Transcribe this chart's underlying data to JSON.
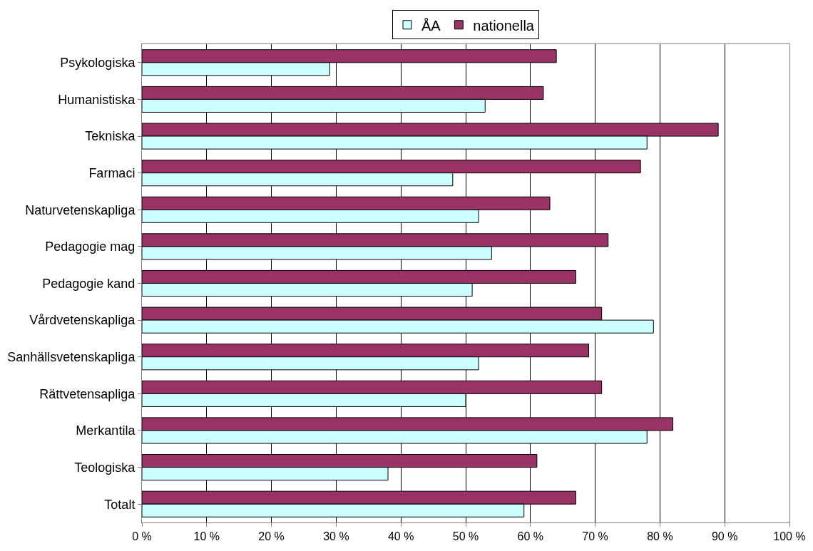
{
  "chart_data": {
    "type": "bar",
    "orientation": "horizontal",
    "categories": [
      "Psykologiska",
      "Humanistiska",
      "Tekniska",
      "Farmaci",
      "Naturvetenskapliga",
      "Pedagogie mag",
      "Pedagogie kand",
      "Vårdvetenskapliga",
      "Sanhällsvetenskapliga",
      "Rättvetensapliga",
      "Merkantila",
      "Teologiska",
      "Totalt"
    ],
    "series": [
      {
        "name": "ÅA",
        "color": "#ccffff",
        "values": [
          29,
          53,
          78,
          48,
          52,
          54,
          51,
          79,
          52,
          50,
          78,
          38,
          59
        ]
      },
      {
        "name": "nationella",
        "color": "#993366",
        "values": [
          64,
          62,
          89,
          77,
          63,
          72,
          67,
          71,
          69,
          71,
          82,
          61,
          67
        ]
      }
    ],
    "xlim": [
      0,
      100
    ],
    "xticks": [
      {
        "value": 0,
        "label": "0 %"
      },
      {
        "value": 10,
        "label": "10 %"
      },
      {
        "value": 20,
        "label": "20 %"
      },
      {
        "value": 30,
        "label": "30 %"
      },
      {
        "value": 40,
        "label": "40 %"
      },
      {
        "value": 50,
        "label": "50 %"
      },
      {
        "value": 60,
        "label": "60 %"
      },
      {
        "value": 70,
        "label": "70 %"
      },
      {
        "value": 80,
        "label": "80 %"
      },
      {
        "value": 90,
        "label": "90 %"
      },
      {
        "value": 100,
        "label": "100 %"
      }
    ],
    "grid": "x",
    "legend": "top"
  }
}
